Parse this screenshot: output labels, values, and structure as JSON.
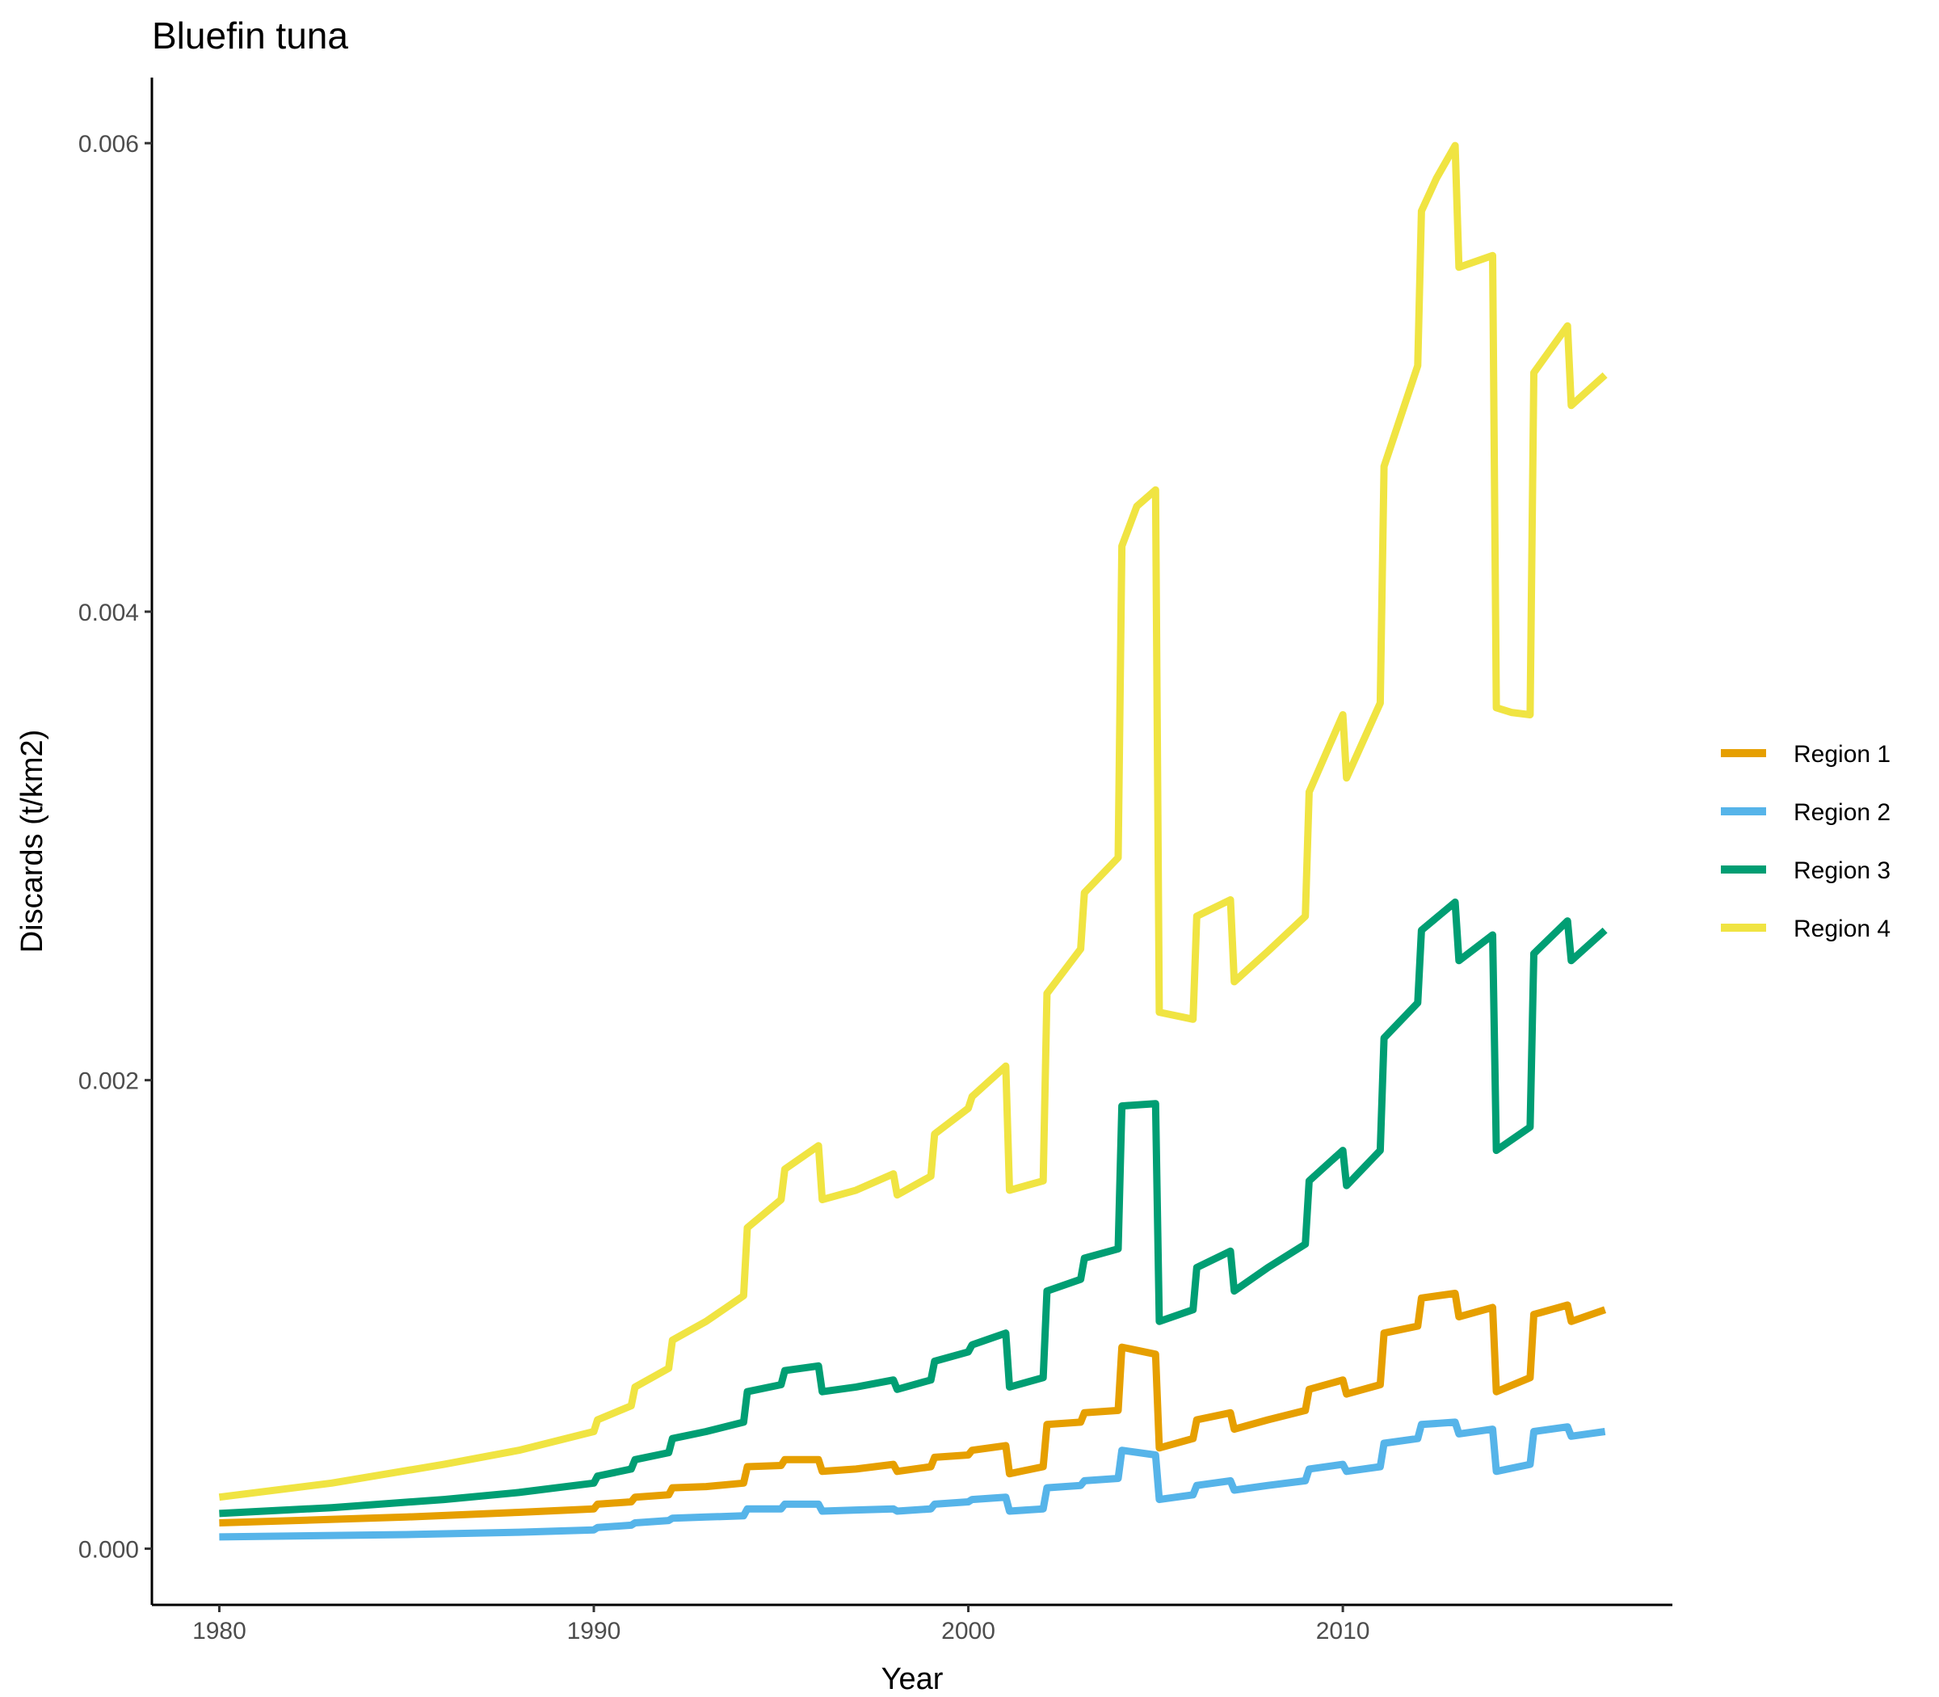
{
  "chart_data": {
    "type": "line",
    "title": "Bluefin tuna",
    "xlabel": "Year",
    "ylabel": "Discards (t/km2)",
    "xlim": [
      1978.2,
      2018.8
    ],
    "ylim": [
      -0.00024,
      0.00628
    ],
    "x_ticks": [
      1980,
      1990,
      2000,
      2010
    ],
    "x_tick_labels": [
      "1980",
      "1990",
      "2000",
      "2010"
    ],
    "y_ticks": [
      0.0,
      0.002,
      0.004,
      0.006
    ],
    "y_tick_labels": [
      "0.000",
      "0.002",
      "0.004",
      "0.006"
    ],
    "grid": false,
    "legend_position": "right",
    "series": [
      {
        "name": "Region 1",
        "color": "#E69F00",
        "points": [
          [
            1980.0,
            0.00011
          ],
          [
            1985.0,
            0.000135
          ],
          [
            1988.0,
            0.000155
          ],
          [
            1990.0,
            0.00017
          ],
          [
            1990.1,
            0.00019
          ],
          [
            1991.0,
            0.0002
          ],
          [
            1991.1,
            0.00022
          ],
          [
            1992.0,
            0.00023
          ],
          [
            1992.1,
            0.00026
          ],
          [
            1993.0,
            0.000265
          ],
          [
            1994.0,
            0.00028
          ],
          [
            1994.1,
            0.00035
          ],
          [
            1995.0,
            0.000355
          ],
          [
            1995.1,
            0.00038
          ],
          [
            1996.0,
            0.00038
          ],
          [
            1996.1,
            0.00033
          ],
          [
            1997.0,
            0.00034
          ],
          [
            1998.0,
            0.00036
          ],
          [
            1998.1,
            0.00033
          ],
          [
            1999.0,
            0.00035
          ],
          [
            1999.1,
            0.00039
          ],
          [
            2000.0,
            0.0004
          ],
          [
            2000.1,
            0.00042
          ],
          [
            2001.0,
            0.00044
          ],
          [
            2001.1,
            0.00032
          ],
          [
            2002.0,
            0.00035
          ],
          [
            2002.1,
            0.00053
          ],
          [
            2003.0,
            0.00054
          ],
          [
            2003.1,
            0.00058
          ],
          [
            2004.0,
            0.00059
          ],
          [
            2004.1,
            0.00086
          ],
          [
            2005.0,
            0.00083
          ],
          [
            2005.1,
            0.00043
          ],
          [
            2006.0,
            0.00047
          ],
          [
            2006.1,
            0.00055
          ],
          [
            2007.0,
            0.00058
          ],
          [
            2007.1,
            0.00051
          ],
          [
            2008.0,
            0.00055
          ],
          [
            2009.0,
            0.00059
          ],
          [
            2009.1,
            0.00068
          ],
          [
            2010.0,
            0.00072
          ],
          [
            2010.1,
            0.00066
          ],
          [
            2011.0,
            0.0007
          ],
          [
            2011.1,
            0.00092
          ],
          [
            2012.0,
            0.00095
          ],
          [
            2012.1,
            0.00107
          ],
          [
            2013.0,
            0.00109
          ],
          [
            2013.1,
            0.00099
          ],
          [
            2014.0,
            0.00103
          ],
          [
            2014.1,
            0.00067
          ],
          [
            2015.0,
            0.00073
          ],
          [
            2015.1,
            0.001
          ],
          [
            2016.0,
            0.00104
          ],
          [
            2016.1,
            0.00097
          ],
          [
            2017.0,
            0.00102
          ]
        ]
      },
      {
        "name": "Region 2",
        "color": "#56B4E9",
        "points": [
          [
            1980.0,
            5e-05
          ],
          [
            1985.0,
            6e-05
          ],
          [
            1988.0,
            7e-05
          ],
          [
            1990.0,
            8e-05
          ],
          [
            1990.1,
            9e-05
          ],
          [
            1991.0,
            0.0001
          ],
          [
            1991.1,
            0.00011
          ],
          [
            1992.0,
            0.00012
          ],
          [
            1992.1,
            0.00013
          ],
          [
            1993.0,
            0.000135
          ],
          [
            1994.0,
            0.00014
          ],
          [
            1994.1,
            0.00017
          ],
          [
            1995.0,
            0.00017
          ],
          [
            1995.1,
            0.00019
          ],
          [
            1996.0,
            0.00019
          ],
          [
            1996.1,
            0.00016
          ],
          [
            1997.0,
            0.000165
          ],
          [
            1998.0,
            0.00017
          ],
          [
            1998.1,
            0.00016
          ],
          [
            1999.0,
            0.00017
          ],
          [
            1999.1,
            0.00019
          ],
          [
            2000.0,
            0.0002
          ],
          [
            2000.1,
            0.00021
          ],
          [
            2001.0,
            0.00022
          ],
          [
            2001.1,
            0.00016
          ],
          [
            2002.0,
            0.00017
          ],
          [
            2002.1,
            0.00026
          ],
          [
            2003.0,
            0.00027
          ],
          [
            2003.1,
            0.00029
          ],
          [
            2004.0,
            0.0003
          ],
          [
            2004.1,
            0.00042
          ],
          [
            2005.0,
            0.0004
          ],
          [
            2005.1,
            0.00021
          ],
          [
            2006.0,
            0.00023
          ],
          [
            2006.1,
            0.00027
          ],
          [
            2007.0,
            0.00029
          ],
          [
            2007.1,
            0.00025
          ],
          [
            2008.0,
            0.00027
          ],
          [
            2009.0,
            0.00029
          ],
          [
            2009.1,
            0.00034
          ],
          [
            2010.0,
            0.00036
          ],
          [
            2010.1,
            0.00033
          ],
          [
            2011.0,
            0.00035
          ],
          [
            2011.1,
            0.00045
          ],
          [
            2012.0,
            0.00047
          ],
          [
            2012.1,
            0.00053
          ],
          [
            2013.0,
            0.00054
          ],
          [
            2013.1,
            0.00049
          ],
          [
            2014.0,
            0.00051
          ],
          [
            2014.1,
            0.00033
          ],
          [
            2015.0,
            0.00036
          ],
          [
            2015.1,
            0.0005
          ],
          [
            2016.0,
            0.00052
          ],
          [
            2016.1,
            0.00048
          ],
          [
            2017.0,
            0.0005
          ]
        ]
      },
      {
        "name": "Region 3",
        "color": "#009E73",
        "points": [
          [
            1980.0,
            0.00015
          ],
          [
            1983.0,
            0.000175
          ],
          [
            1986.0,
            0.00021
          ],
          [
            1988.0,
            0.00024
          ],
          [
            1990.0,
            0.00028
          ],
          [
            1990.1,
            0.00031
          ],
          [
            1991.0,
            0.00034
          ],
          [
            1991.1,
            0.00038
          ],
          [
            1992.0,
            0.00041
          ],
          [
            1992.1,
            0.00047
          ],
          [
            1993.0,
            0.0005
          ],
          [
            1994.0,
            0.00054
          ],
          [
            1994.1,
            0.00067
          ],
          [
            1995.0,
            0.0007
          ],
          [
            1995.1,
            0.00076
          ],
          [
            1996.0,
            0.00078
          ],
          [
            1996.1,
            0.00067
          ],
          [
            1997.0,
            0.00069
          ],
          [
            1998.0,
            0.00072
          ],
          [
            1998.1,
            0.00068
          ],
          [
            1999.0,
            0.00072
          ],
          [
            1999.1,
            0.0008
          ],
          [
            2000.0,
            0.00084
          ],
          [
            2000.1,
            0.00087
          ],
          [
            2001.0,
            0.00092
          ],
          [
            2001.1,
            0.00069
          ],
          [
            2002.0,
            0.00073
          ],
          [
            2002.1,
            0.0011
          ],
          [
            2003.0,
            0.00115
          ],
          [
            2003.1,
            0.00124
          ],
          [
            2004.0,
            0.00128
          ],
          [
            2004.1,
            0.00189
          ],
          [
            2005.0,
            0.0019
          ],
          [
            2005.1,
            0.00097
          ],
          [
            2006.0,
            0.00102
          ],
          [
            2006.1,
            0.0012
          ],
          [
            2007.0,
            0.00127
          ],
          [
            2007.1,
            0.0011
          ],
          [
            2008.0,
            0.0012
          ],
          [
            2009.0,
            0.0013
          ],
          [
            2009.1,
            0.00157
          ],
          [
            2010.0,
            0.0017
          ],
          [
            2010.1,
            0.00155
          ],
          [
            2011.0,
            0.0017
          ],
          [
            2011.1,
            0.00218
          ],
          [
            2012.0,
            0.00233
          ],
          [
            2012.1,
            0.00264
          ],
          [
            2013.0,
            0.00276
          ],
          [
            2013.1,
            0.00251
          ],
          [
            2014.0,
            0.00262
          ],
          [
            2014.1,
            0.0017
          ],
          [
            2015.0,
            0.0018
          ],
          [
            2015.1,
            0.00254
          ],
          [
            2016.0,
            0.00268
          ],
          [
            2016.1,
            0.00251
          ],
          [
            2017.0,
            0.00264
          ]
        ]
      },
      {
        "name": "Region 4",
        "color": "#F0E442",
        "points": [
          [
            1980.0,
            0.00022
          ],
          [
            1983.0,
            0.00028
          ],
          [
            1986.0,
            0.00036
          ],
          [
            1988.0,
            0.00042
          ],
          [
            1990.0,
            0.0005
          ],
          [
            1990.1,
            0.00055
          ],
          [
            1991.0,
            0.00061
          ],
          [
            1991.1,
            0.00069
          ],
          [
            1992.0,
            0.00077
          ],
          [
            1992.1,
            0.00089
          ],
          [
            1993.0,
            0.00097
          ],
          [
            1994.0,
            0.00108
          ],
          [
            1994.1,
            0.00137
          ],
          [
            1995.0,
            0.00149
          ],
          [
            1995.1,
            0.00162
          ],
          [
            1996.0,
            0.00172
          ],
          [
            1996.1,
            0.00149
          ],
          [
            1997.0,
            0.00153
          ],
          [
            1998.0,
            0.0016
          ],
          [
            1998.1,
            0.00151
          ],
          [
            1999.0,
            0.00159
          ],
          [
            1999.1,
            0.00177
          ],
          [
            2000.0,
            0.00188
          ],
          [
            2000.1,
            0.00193
          ],
          [
            2001.0,
            0.00206
          ],
          [
            2001.1,
            0.00153
          ],
          [
            2002.0,
            0.00157
          ],
          [
            2002.1,
            0.00237
          ],
          [
            2003.0,
            0.00256
          ],
          [
            2003.1,
            0.0028
          ],
          [
            2004.0,
            0.00295
          ],
          [
            2004.1,
            0.00428
          ],
          [
            2004.5,
            0.00445
          ],
          [
            2005.0,
            0.00452
          ],
          [
            2005.1,
            0.00229
          ],
          [
            2006.0,
            0.00226
          ],
          [
            2006.1,
            0.0027
          ],
          [
            2007.0,
            0.00277
          ],
          [
            2007.1,
            0.00242
          ],
          [
            2008.0,
            0.00255
          ],
          [
            2009.0,
            0.0027
          ],
          [
            2009.1,
            0.00323
          ],
          [
            2010.0,
            0.00356
          ],
          [
            2010.1,
            0.00329
          ],
          [
            2011.0,
            0.00361
          ],
          [
            2011.1,
            0.00462
          ],
          [
            2012.0,
            0.00505
          ],
          [
            2012.1,
            0.00571
          ],
          [
            2012.5,
            0.00585
          ],
          [
            2013.0,
            0.00599
          ],
          [
            2013.1,
            0.00547
          ],
          [
            2014.0,
            0.00552
          ],
          [
            2014.1,
            0.00359
          ],
          [
            2014.5,
            0.00357
          ],
          [
            2015.0,
            0.00356
          ],
          [
            2015.1,
            0.00502
          ],
          [
            2016.0,
            0.00522
          ],
          [
            2016.1,
            0.00488
          ],
          [
            2017.0,
            0.00501
          ]
        ]
      }
    ]
  }
}
